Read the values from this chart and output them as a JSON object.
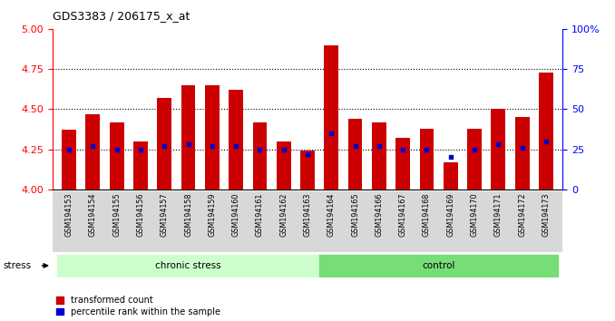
{
  "title": "GDS3383 / 206175_x_at",
  "samples": [
    "GSM194153",
    "GSM194154",
    "GSM194155",
    "GSM194156",
    "GSM194157",
    "GSM194158",
    "GSM194159",
    "GSM194160",
    "GSM194161",
    "GSM194162",
    "GSM194163",
    "GSM194164",
    "GSM194165",
    "GSM194166",
    "GSM194167",
    "GSM194168",
    "GSM194169",
    "GSM194170",
    "GSM194171",
    "GSM194172",
    "GSM194173"
  ],
  "red_values": [
    4.37,
    4.47,
    4.42,
    4.3,
    4.57,
    4.65,
    4.65,
    4.62,
    4.42,
    4.3,
    4.24,
    4.9,
    4.44,
    4.42,
    4.32,
    4.38,
    4.17,
    4.38,
    4.5,
    4.45,
    4.73
  ],
  "blue_values": [
    4.25,
    4.27,
    4.25,
    4.25,
    4.27,
    4.28,
    4.27,
    4.27,
    4.25,
    4.25,
    4.22,
    4.35,
    4.27,
    4.27,
    4.25,
    4.25,
    4.2,
    4.25,
    4.28,
    4.26,
    4.3
  ],
  "chronic_label": "chronic stress",
  "control_label": "control",
  "stress_label": "stress",
  "ylim_left": [
    4.0,
    5.0
  ],
  "ylim_right": [
    0,
    100
  ],
  "yticks_left": [
    4.0,
    4.25,
    4.5,
    4.75,
    5.0
  ],
  "yticks_right": [
    0,
    25,
    50,
    75,
    100
  ],
  "ytick_right_labels": [
    "0",
    "25",
    "50",
    "75",
    "100%"
  ],
  "grid_vals": [
    4.25,
    4.5,
    4.75
  ],
  "bar_color": "#cc0000",
  "dot_color": "#0000cc",
  "chronic_bg": "#ccffcc",
  "control_bg": "#77dd77",
  "legend_red": "transformed count",
  "legend_blue": "percentile rank within the sample",
  "n_chronic": 11,
  "n_control": 10
}
